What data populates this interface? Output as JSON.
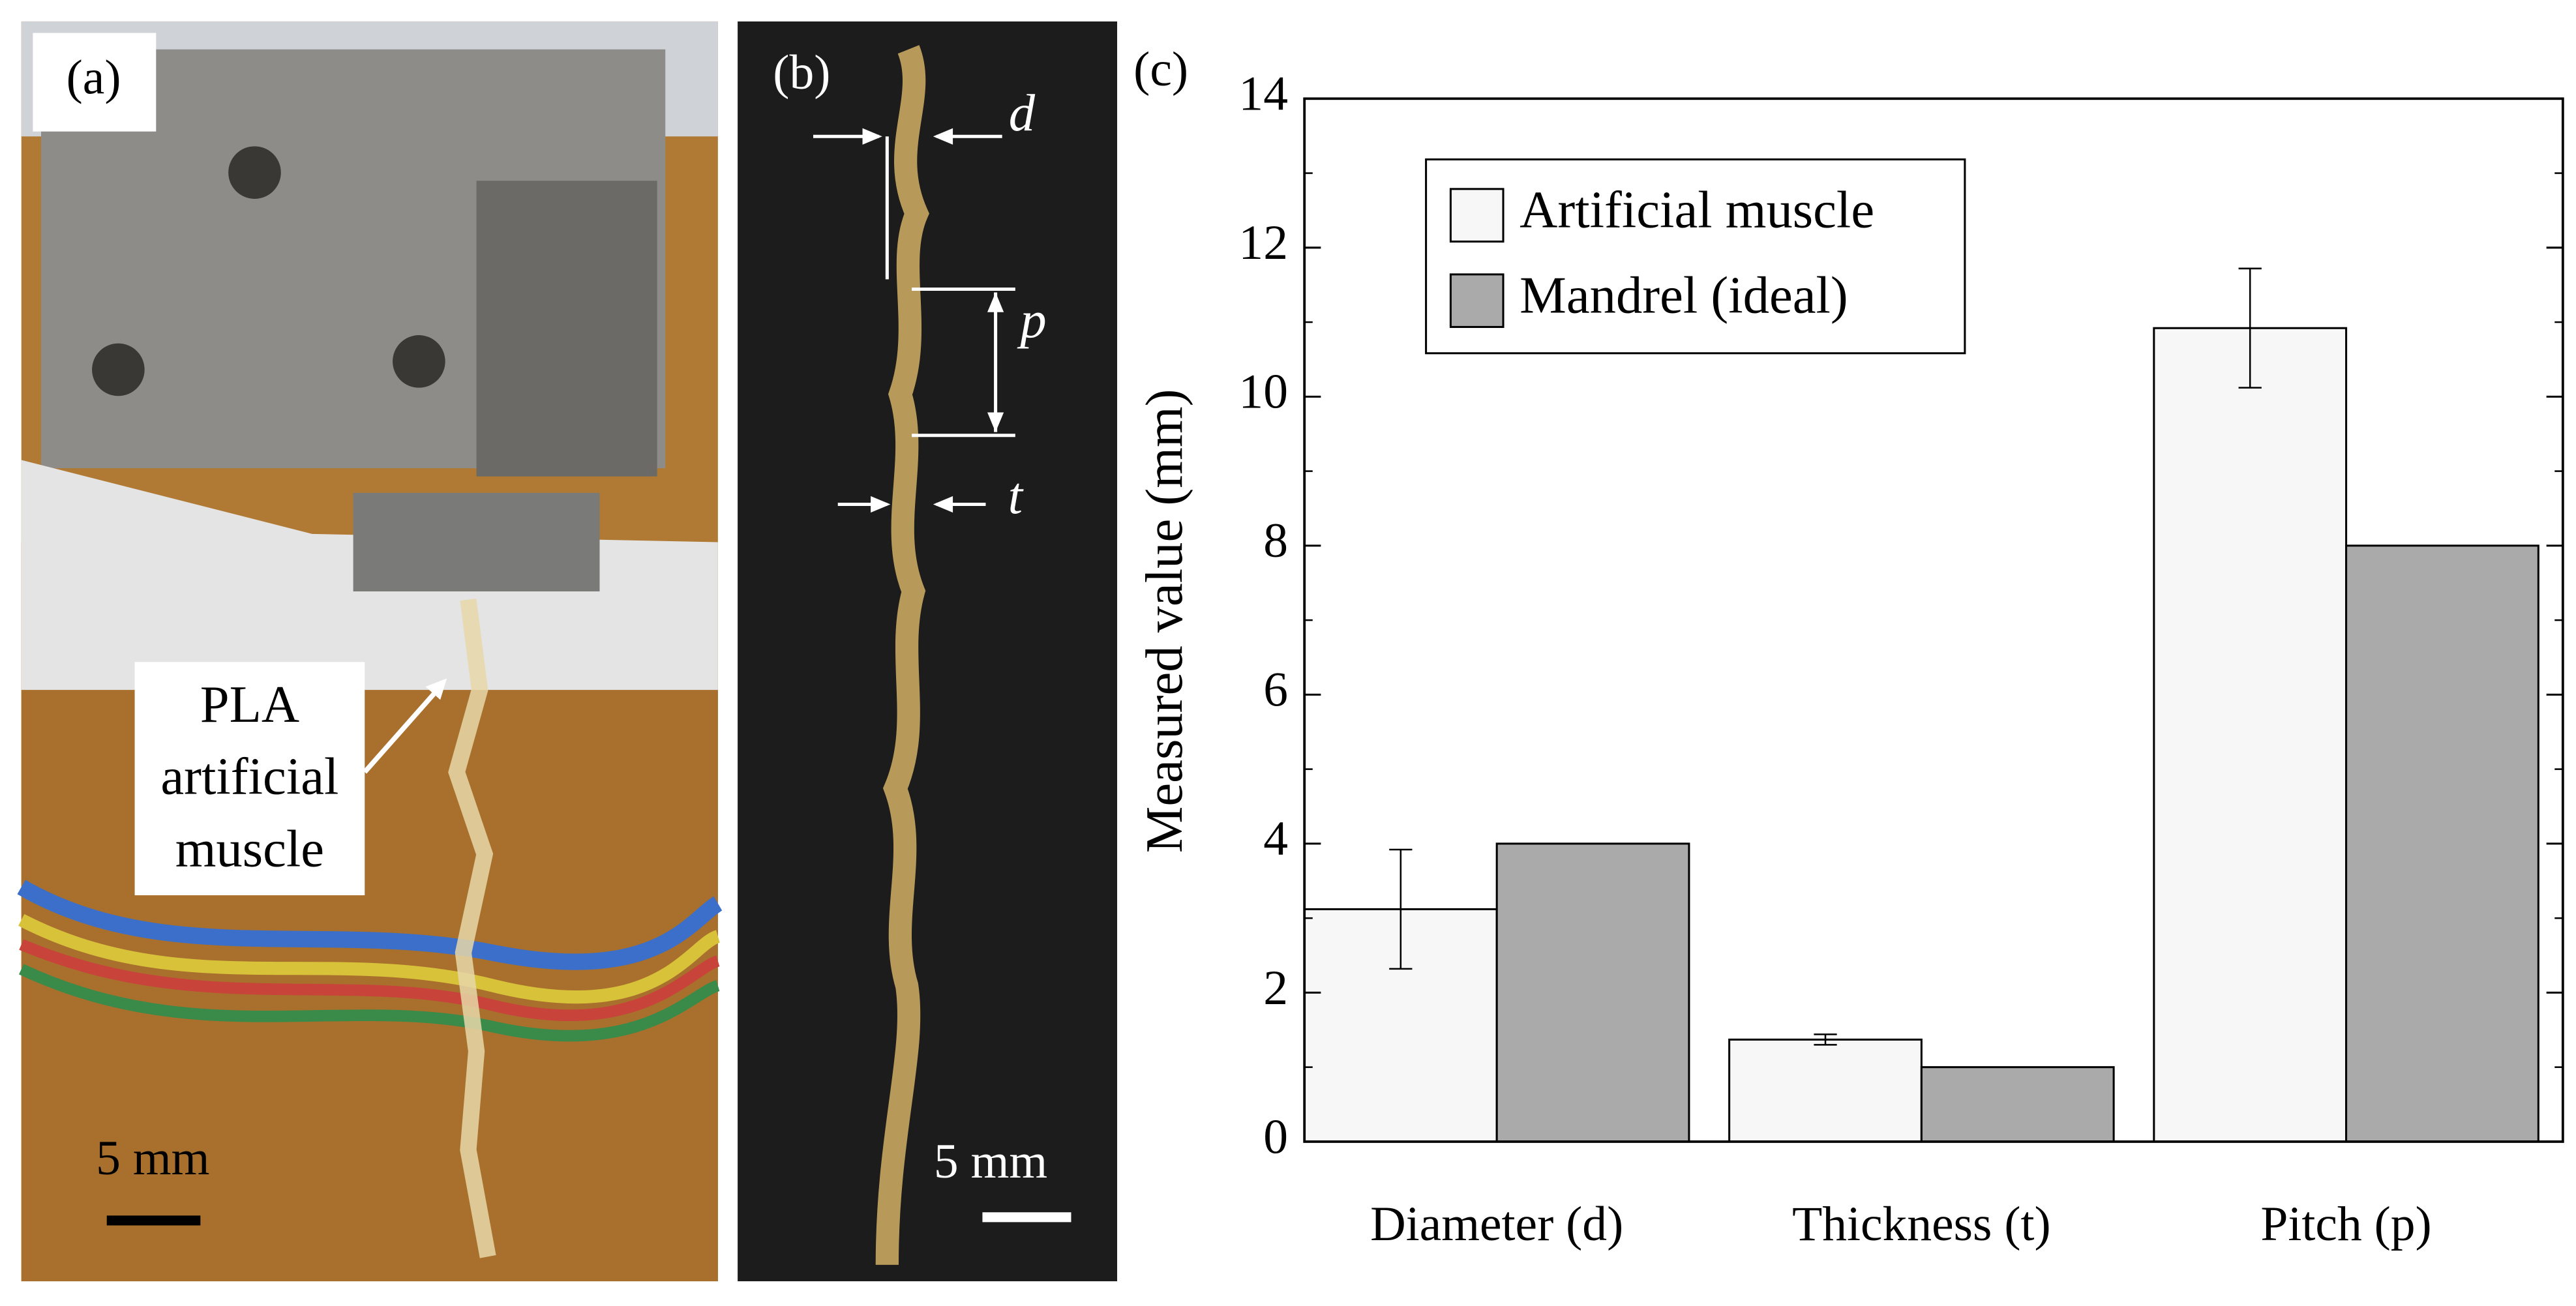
{
  "panel_a": {
    "label": "(a)",
    "annotation_lines": [
      "PLA",
      "artificial",
      "muscle"
    ],
    "scale": "5 mm"
  },
  "panel_b": {
    "label": "(b)",
    "d": "d",
    "p": "p",
    "t": "t",
    "scale": "5 mm"
  },
  "chart_data": {
    "type": "bar",
    "panel_label": "(c)",
    "y_label": "Measured value (mm)",
    "categories": [
      "Diameter (d)",
      "Thickness (t)",
      "Pitch (p)"
    ],
    "series": [
      {
        "name": "Artificial muscle",
        "color": "#f7f7f7",
        "values": [
          3.12,
          1.37,
          10.92
        ],
        "errors": [
          0.8,
          0.07,
          0.8
        ]
      },
      {
        "name": "Mandrel (ideal)",
        "color": "#aaaaaa",
        "values": [
          4,
          1,
          8
        ]
      }
    ],
    "ylim": [
      0,
      14
    ],
    "yticks": [
      0,
      2,
      4,
      6,
      8,
      10,
      12,
      14
    ],
    "minor_yticks": [
      1,
      3,
      5,
      7,
      9,
      11,
      13
    ],
    "legend": "upper left"
  }
}
